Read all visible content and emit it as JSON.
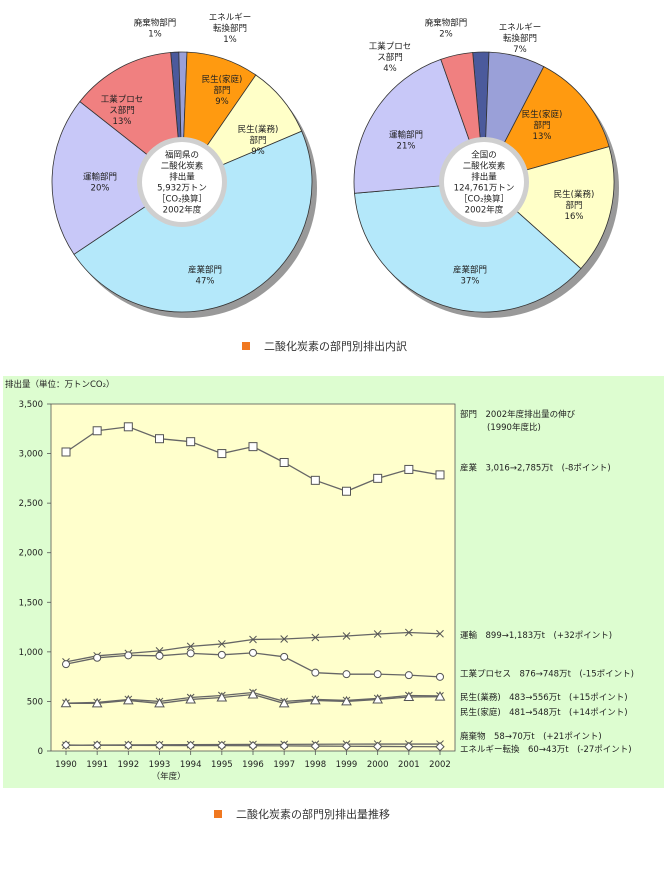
{
  "chart_data": [
    {
      "type": "pie",
      "center_text": [
        "福岡県の",
        "二酸化炭素",
        "排出量",
        "5,932万トン",
        "［CO₂換算］",
        "2002年度"
      ],
      "slices": [
        {
          "label": [
            "廃棄物部門",
            "1%"
          ],
          "value": 1,
          "color": "#4b5a9c"
        },
        {
          "label": [
            "エネルギー",
            "転換部門",
            "1%"
          ],
          "value": 1,
          "color": "#9aa0d8"
        },
        {
          "label": [
            "民生(家庭)",
            "部門",
            "9%"
          ],
          "value": 9,
          "color": "#ff9a10"
        },
        {
          "label": [
            "民生(業務)",
            "部門",
            "9%"
          ],
          "value": 9,
          "color": "#ffffc8"
        },
        {
          "label": [
            "産業部門",
            "47%"
          ],
          "value": 47,
          "color": "#b4e8fa"
        },
        {
          "label": [
            "運輸部門",
            "20%"
          ],
          "value": 20,
          "color": "#c8c8f8"
        },
        {
          "label": [
            "工業プロセ",
            "ス部門",
            "13%"
          ],
          "value": 13,
          "color": "#f08080"
        }
      ]
    },
    {
      "type": "pie",
      "center_text": [
        "全国の",
        "二酸化炭素",
        "排出量",
        "124,761万トン",
        "［CO₂換算］",
        "2002年度"
      ],
      "slices": [
        {
          "label": [
            "廃棄物部門",
            "2%"
          ],
          "value": 2,
          "color": "#4b5a9c"
        },
        {
          "label": [
            "エネルギー",
            "転換部門",
            "7%"
          ],
          "value": 7,
          "color": "#9aa0d8"
        },
        {
          "label": [
            "民生(家庭)",
            "部門",
            "13%"
          ],
          "value": 13,
          "color": "#ff9a10"
        },
        {
          "label": [
            "民生(業務)",
            "部門",
            "16%"
          ],
          "value": 16,
          "color": "#ffffc8"
        },
        {
          "label": [
            "産業部門",
            "37%"
          ],
          "value": 37,
          "color": "#b4e8fa"
        },
        {
          "label": [
            "運輸部門",
            "21%"
          ],
          "value": 21,
          "color": "#c8c8f8"
        },
        {
          "label": [
            "工業プロセ",
            "ス部門",
            "4%"
          ],
          "value": 4,
          "color": "#f08080"
        }
      ]
    },
    {
      "type": "line",
      "ylabel": "排出量（単位：万トンCO₂）",
      "xlabel": "（年度）",
      "x": [
        "1990",
        "1991",
        "1992",
        "1993",
        "1994",
        "1995",
        "1996",
        "1997",
        "1998",
        "1999",
        "2000",
        "2001",
        "2002"
      ],
      "ylim": [
        0,
        3500
      ],
      "yticks": [
        "0",
        "500",
        "1,000",
        "1,500",
        "2,000",
        "2,500",
        "3,000",
        "3,500"
      ],
      "series": [
        {
          "name": "産業",
          "marker": "square",
          "values": [
            3016,
            3230,
            3270,
            3150,
            3120,
            3000,
            3070,
            2910,
            2730,
            2620,
            2750,
            2840,
            2785
          ]
        },
        {
          "name": "運輸",
          "marker": "x",
          "values": [
            899,
            960,
            985,
            1010,
            1055,
            1080,
            1125,
            1130,
            1145,
            1160,
            1180,
            1195,
            1183
          ]
        },
        {
          "name": "工業プロセス",
          "marker": "circle",
          "values": [
            876,
            940,
            965,
            960,
            985,
            970,
            990,
            950,
            790,
            775,
            775,
            765,
            748
          ]
        },
        {
          "name": "民生(業務)",
          "marker": "x",
          "values": [
            483,
            490,
            520,
            500,
            540,
            560,
            590,
            500,
            520,
            510,
            530,
            560,
            556
          ]
        },
        {
          "name": "民生(家庭)",
          "marker": "triangle",
          "values": [
            481,
            480,
            510,
            480,
            520,
            540,
            570,
            480,
            510,
            500,
            520,
            545,
            548
          ]
        },
        {
          "name": "廃棄物",
          "marker": "x",
          "values": [
            58,
            60,
            62,
            63,
            64,
            65,
            66,
            67,
            68,
            69,
            70,
            70,
            70
          ]
        },
        {
          "name": "エネルギー転換",
          "marker": "diamond",
          "values": [
            60,
            58,
            57,
            56,
            55,
            54,
            53,
            52,
            50,
            48,
            46,
            44,
            43
          ]
        }
      ],
      "annotations": [
        {
          "text": "部門　2002年度排出量の伸び",
          "anchor_value": 3400
        },
        {
          "text": "(1990年度比)",
          "anchor_value": 3270,
          "indent": true
        },
        {
          "text": "産業　3,016→2,785万t　(-8ポイント)",
          "anchor_value": 2860
        },
        {
          "text": "運輸　899→1,183万t　(+32ポイント)",
          "anchor_value": 1170
        },
        {
          "text": "工業プロセス　876→748万t　(-15ポイント)",
          "anchor_value": 780
        },
        {
          "text": "民生(業務)　483→556万t　(+15ポイント)",
          "anchor_value": 545
        },
        {
          "text": "民生(家庭)　481→548万t　(+14ポイント)",
          "anchor_value": 395
        },
        {
          "text": "廃棄物　58→70万t　(+21ポイント)",
          "anchor_value": 150
        },
        {
          "text": "エネルギー転換　60→43万t　(-27ポイント)",
          "anchor_value": 20
        }
      ]
    }
  ],
  "captions": {
    "pie": "二酸化炭素の部門別排出内訳",
    "line": "二酸化炭素の部門別排出量推移"
  },
  "colors": {
    "caption_bullet": "#f07820",
    "plot_area": "#ffffcc",
    "panel_background": "#ddfdd0"
  }
}
